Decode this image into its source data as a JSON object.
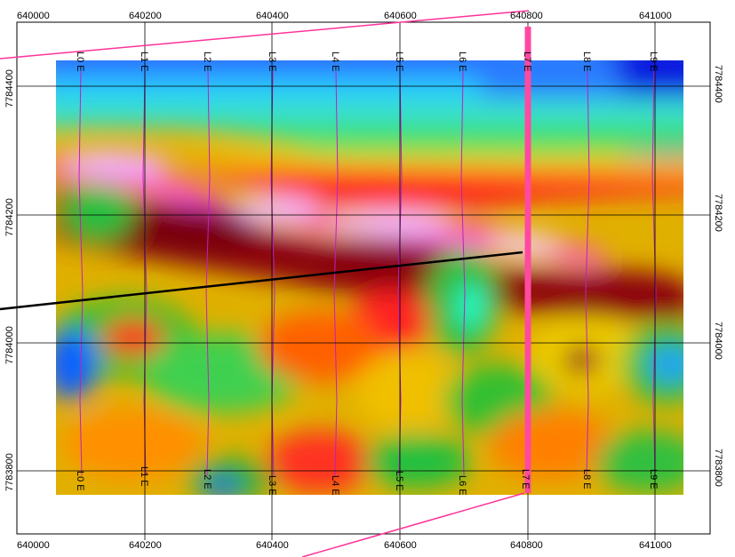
{
  "map": {
    "x_ticks": [
      "640000",
      "640200",
      "640400",
      "640600",
      "640800",
      "641000"
    ],
    "y_ticks": [
      "7784400",
      "7784200",
      "7784000",
      "7783800"
    ],
    "line_labels": [
      "L0 E",
      "L1 E",
      "L2 E",
      "L3 E",
      "L4 E",
      "L5 E",
      "L6 E",
      "L7 E",
      "L8 E",
      "L9 E"
    ],
    "colors": {
      "profile_line": "#ff4aa0",
      "overlay_line": "#ff3399",
      "fault_line": "#000000",
      "frame": "#000000"
    }
  }
}
